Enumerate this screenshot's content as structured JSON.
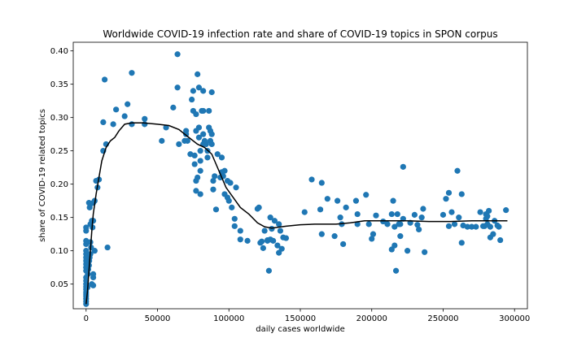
{
  "chart_data": {
    "type": "scatter",
    "title": "Worldwide COVID-19 infection rate and share of COVID-19 topics in SPON corpus",
    "xlabel": "daily cases worldwide",
    "ylabel": "share of COVID-19 related topics",
    "xlim": [
      -9000,
      309000
    ],
    "ylim": [
      0.013,
      0.413
    ],
    "xticks": [
      0,
      50000,
      100000,
      150000,
      200000,
      250000,
      300000
    ],
    "xtick_labels": [
      "0",
      "50000",
      "100000",
      "150000",
      "200000",
      "250000",
      "300000"
    ],
    "yticks": [
      0.05,
      0.1,
      0.15,
      0.2,
      0.25,
      0.3,
      0.35,
      0.4
    ],
    "ytick_labels": [
      "0.05",
      "0.10",
      "0.15",
      "0.20",
      "0.25",
      "0.30",
      "0.35",
      "0.40"
    ],
    "grid": false,
    "colors": {
      "points": "#1f77b4",
      "trend": "#000000"
    },
    "series": [
      {
        "kind": "scatter",
        "points": [
          [
            0,
            0.02
          ],
          [
            0,
            0.024
          ],
          [
            0,
            0.028
          ],
          [
            0,
            0.032
          ],
          [
            0,
            0.035
          ],
          [
            0,
            0.038
          ],
          [
            0,
            0.042
          ],
          [
            0,
            0.046
          ],
          [
            0,
            0.05
          ],
          [
            0,
            0.055
          ],
          [
            0,
            0.06
          ],
          [
            0,
            0.07
          ],
          [
            0,
            0.075
          ],
          [
            0,
            0.08
          ],
          [
            0,
            0.085
          ],
          [
            0,
            0.09
          ],
          [
            0,
            0.095
          ],
          [
            0,
            0.1
          ],
          [
            0,
            0.11
          ],
          [
            0,
            0.115
          ],
          [
            0,
            0.13
          ],
          [
            0,
            0.135
          ],
          [
            1000,
            0.045
          ],
          [
            1200,
            0.065
          ],
          [
            1500,
            0.072
          ],
          [
            2000,
            0.078
          ],
          [
            2200,
            0.085
          ],
          [
            2500,
            0.09
          ],
          [
            3000,
            0.095
          ],
          [
            3500,
            0.105
          ],
          [
            3000,
            0.113
          ],
          [
            2500,
            0.165
          ],
          [
            3000,
            0.17
          ],
          [
            2000,
            0.172
          ],
          [
            3000,
            0.14
          ],
          [
            4000,
            0.145
          ],
          [
            4500,
            0.135
          ],
          [
            5000,
            0.145
          ],
          [
            5000,
            0.06
          ],
          [
            5000,
            0.065
          ],
          [
            4000,
            0.05
          ],
          [
            5000,
            0.048
          ],
          [
            5000,
            0.172
          ],
          [
            6000,
            0.175
          ],
          [
            6000,
            0.1
          ],
          [
            7000,
            0.205
          ],
          [
            9000,
            0.207
          ],
          [
            8000,
            0.195
          ],
          [
            12000,
            0.293
          ],
          [
            12000,
            0.25
          ],
          [
            13000,
            0.357
          ],
          [
            14000,
            0.26
          ],
          [
            15000,
            0.105
          ],
          [
            19000,
            0.29
          ],
          [
            21000,
            0.312
          ],
          [
            29000,
            0.32
          ],
          [
            27000,
            0.302
          ],
          [
            32000,
            0.29
          ],
          [
            32000,
            0.367
          ],
          [
            41000,
            0.298
          ],
          [
            41000,
            0.29
          ],
          [
            53000,
            0.265
          ],
          [
            56000,
            0.285
          ],
          [
            61000,
            0.315
          ],
          [
            64000,
            0.395
          ],
          [
            64000,
            0.345
          ],
          [
            65000,
            0.26
          ],
          [
            69000,
            0.265
          ],
          [
            70000,
            0.275
          ],
          [
            70000,
            0.28
          ],
          [
            71000,
            0.265
          ],
          [
            73000,
            0.245
          ],
          [
            74000,
            0.327
          ],
          [
            75000,
            0.31
          ],
          [
            75000,
            0.34
          ],
          [
            76000,
            0.243
          ],
          [
            77000,
            0.305
          ],
          [
            77000,
            0.28
          ],
          [
            76000,
            0.23
          ],
          [
            77000,
            0.205
          ],
          [
            78000,
            0.21
          ],
          [
            77000,
            0.19
          ],
          [
            78000,
            0.365
          ],
          [
            79000,
            0.345
          ],
          [
            79000,
            0.285
          ],
          [
            79000,
            0.27
          ],
          [
            80000,
            0.25
          ],
          [
            80000,
            0.235
          ],
          [
            80000,
            0.22
          ],
          [
            81000,
            0.31
          ],
          [
            80000,
            0.185
          ],
          [
            82000,
            0.34
          ],
          [
            82000,
            0.31
          ],
          [
            82000,
            0.275
          ],
          [
            82000,
            0.26
          ],
          [
            83000,
            0.265
          ],
          [
            84000,
            0.26
          ],
          [
            85000,
            0.25
          ],
          [
            85000,
            0.24
          ],
          [
            86000,
            0.31
          ],
          [
            86000,
            0.285
          ],
          [
            87000,
            0.28
          ],
          [
            87000,
            0.265
          ],
          [
            88000,
            0.26
          ],
          [
            88000,
            0.275
          ],
          [
            88000,
            0.338
          ],
          [
            89000,
            0.205
          ],
          [
            89000,
            0.192
          ],
          [
            90000,
            0.212
          ],
          [
            91000,
            0.162
          ],
          [
            92000,
            0.245
          ],
          [
            94000,
            0.21
          ],
          [
            95000,
            0.24
          ],
          [
            95000,
            0.218
          ],
          [
            96000,
            0.212
          ],
          [
            97000,
            0.22
          ],
          [
            97000,
            0.185
          ],
          [
            99000,
            0.18
          ],
          [
            99000,
            0.205
          ],
          [
            100000,
            0.175
          ],
          [
            101000,
            0.202
          ],
          [
            102000,
            0.165
          ],
          [
            104000,
            0.148
          ],
          [
            104000,
            0.137
          ],
          [
            105000,
            0.195
          ],
          [
            108000,
            0.117
          ],
          [
            108000,
            0.13
          ],
          [
            113000,
            0.115
          ],
          [
            120000,
            0.163
          ],
          [
            121000,
            0.165
          ],
          [
            122000,
            0.112
          ],
          [
            123000,
            0.114
          ],
          [
            124000,
            0.104
          ],
          [
            125000,
            0.13
          ],
          [
            127000,
            0.116
          ],
          [
            127000,
            0.115
          ],
          [
            129000,
            0.15
          ],
          [
            129000,
            0.117
          ],
          [
            128000,
            0.07
          ],
          [
            130000,
            0.133
          ],
          [
            131000,
            0.115
          ],
          [
            132000,
            0.145
          ],
          [
            134000,
            0.108
          ],
          [
            135000,
            0.097
          ],
          [
            135000,
            0.14
          ],
          [
            136000,
            0.13
          ],
          [
            137000,
            0.103
          ],
          [
            138000,
            0.12
          ],
          [
            140000,
            0.119
          ],
          [
            153000,
            0.158
          ],
          [
            158000,
            0.207
          ],
          [
            164000,
            0.162
          ],
          [
            165000,
            0.125
          ],
          [
            165000,
            0.202
          ],
          [
            169000,
            0.178
          ],
          [
            174000,
            0.122
          ],
          [
            176000,
            0.175
          ],
          [
            178000,
            0.15
          ],
          [
            179000,
            0.14
          ],
          [
            180000,
            0.11
          ],
          [
            182000,
            0.165
          ],
          [
            189000,
            0.175
          ],
          [
            190000,
            0.14
          ],
          [
            190000,
            0.155
          ],
          [
            196000,
            0.184
          ],
          [
            198000,
            0.14
          ],
          [
            200000,
            0.118
          ],
          [
            201000,
            0.125
          ],
          [
            203000,
            0.153
          ],
          [
            208000,
            0.144
          ],
          [
            211000,
            0.14
          ],
          [
            214000,
            0.102
          ],
          [
            214000,
            0.155
          ],
          [
            215000,
            0.175
          ],
          [
            216000,
            0.136
          ],
          [
            216000,
            0.108
          ],
          [
            217000,
            0.07
          ],
          [
            218000,
            0.155
          ],
          [
            219000,
            0.14
          ],
          [
            220000,
            0.14
          ],
          [
            220000,
            0.122
          ],
          [
            222000,
            0.148
          ],
          [
            222000,
            0.226
          ],
          [
            225000,
            0.1
          ],
          [
            227000,
            0.142
          ],
          [
            230000,
            0.154
          ],
          [
            232000,
            0.139
          ],
          [
            233000,
            0.132
          ],
          [
            235000,
            0.15
          ],
          [
            236000,
            0.163
          ],
          [
            237000,
            0.098
          ],
          [
            250000,
            0.154
          ],
          [
            252000,
            0.178
          ],
          [
            254000,
            0.187
          ],
          [
            254000,
            0.137
          ],
          [
            256000,
            0.158
          ],
          [
            258000,
            0.14
          ],
          [
            260000,
            0.22
          ],
          [
            261000,
            0.15
          ],
          [
            263000,
            0.185
          ],
          [
            263000,
            0.112
          ],
          [
            264000,
            0.138
          ],
          [
            267000,
            0.136
          ],
          [
            270000,
            0.136
          ],
          [
            273000,
            0.136
          ],
          [
            276000,
            0.158
          ],
          [
            278000,
            0.137
          ],
          [
            279000,
            0.137
          ],
          [
            280000,
            0.155
          ],
          [
            280000,
            0.148
          ],
          [
            281000,
            0.152
          ],
          [
            281000,
            0.14
          ],
          [
            282000,
            0.16
          ],
          [
            283000,
            0.12
          ],
          [
            283000,
            0.136
          ],
          [
            285000,
            0.125
          ],
          [
            286000,
            0.145
          ],
          [
            288000,
            0.138
          ],
          [
            289000,
            0.136
          ],
          [
            290000,
            0.116
          ],
          [
            294000,
            0.161
          ]
        ]
      },
      {
        "kind": "line",
        "points": [
          [
            0,
            0.02
          ],
          [
            1000,
            0.04
          ],
          [
            2000,
            0.07
          ],
          [
            3000,
            0.1
          ],
          [
            4000,
            0.13
          ],
          [
            5000,
            0.155
          ],
          [
            7000,
            0.185
          ],
          [
            9000,
            0.21
          ],
          [
            11000,
            0.235
          ],
          [
            14000,
            0.255
          ],
          [
            17000,
            0.265
          ],
          [
            20000,
            0.27
          ],
          [
            23000,
            0.28
          ],
          [
            27000,
            0.29
          ],
          [
            32000,
            0.292
          ],
          [
            40000,
            0.292
          ],
          [
            50000,
            0.29
          ],
          [
            58000,
            0.288
          ],
          [
            65000,
            0.282
          ],
          [
            72000,
            0.27
          ],
          [
            78000,
            0.26
          ],
          [
            83000,
            0.255
          ],
          [
            88000,
            0.245
          ],
          [
            93000,
            0.22
          ],
          [
            98000,
            0.195
          ],
          [
            103000,
            0.18
          ],
          [
            108000,
            0.165
          ],
          [
            114000,
            0.155
          ],
          [
            120000,
            0.142
          ],
          [
            125000,
            0.136
          ],
          [
            130000,
            0.134
          ],
          [
            140000,
            0.137
          ],
          [
            150000,
            0.139
          ],
          [
            160000,
            0.14
          ],
          [
            175000,
            0.14
          ],
          [
            185000,
            0.142
          ],
          [
            195000,
            0.145
          ],
          [
            210000,
            0.145
          ],
          [
            225000,
            0.145
          ],
          [
            240000,
            0.144
          ],
          [
            255000,
            0.144
          ],
          [
            270000,
            0.145
          ],
          [
            285000,
            0.145
          ],
          [
            295000,
            0.145
          ]
        ]
      }
    ]
  }
}
